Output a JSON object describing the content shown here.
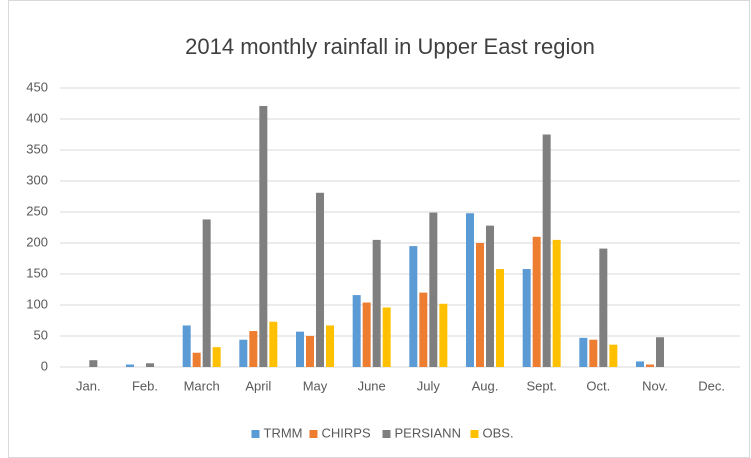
{
  "chart_data": {
    "type": "bar",
    "title": "2014 monthly rainfall in Upper East region",
    "categories": [
      "Jan.",
      "Feb.",
      "March",
      "April",
      "May",
      "June",
      "July",
      "Aug.",
      "Sept.",
      "Oct.",
      "Nov.",
      "Dec."
    ],
    "series": [
      {
        "name": "TRMM",
        "color": "#5b9bd5",
        "values": [
          0,
          4,
          67,
          44,
          57,
          116,
          195,
          248,
          158,
          47,
          9,
          0
        ]
      },
      {
        "name": "CHIRPS",
        "color": "#ed7d31",
        "values": [
          0,
          0,
          23,
          58,
          50,
          104,
          120,
          200,
          210,
          44,
          4,
          0
        ]
      },
      {
        "name": "PERSIANN",
        "color": "#7f7f7f",
        "values": [
          11,
          6,
          238,
          421,
          281,
          205,
          249,
          228,
          375,
          191,
          48,
          0
        ]
      },
      {
        "name": "OBS.",
        "color": "#ffc000",
        "values": [
          0,
          0,
          32,
          73,
          67,
          96,
          102,
          158,
          205,
          36,
          0,
          0
        ]
      }
    ],
    "ylim": [
      0,
      450
    ],
    "yticks": [
      0,
      50,
      100,
      150,
      200,
      250,
      300,
      350,
      400,
      450
    ],
    "grid": true,
    "legend": "bottom"
  }
}
